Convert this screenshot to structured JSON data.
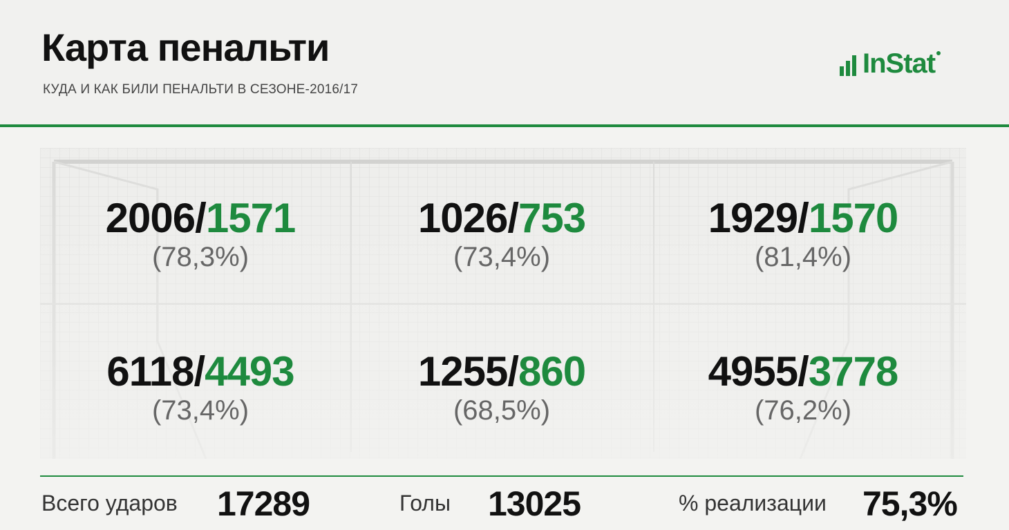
{
  "header": {
    "title": "Карта пенальти",
    "subtitle": "КУДА И КАК БИЛИ ПЕНАЛЬТИ В СЕЗОНЕ-2016/17",
    "logo_text": "InStat"
  },
  "colors": {
    "accent": "#1e8a3e",
    "text": "#111111",
    "muted": "#666666",
    "background": "#f3f3f1"
  },
  "zones": [
    {
      "shots": "2006",
      "goals": "1571",
      "pct": "(78,3%)"
    },
    {
      "shots": "1026",
      "goals": "753",
      "pct": "(73,4%)"
    },
    {
      "shots": "1929",
      "goals": "1570",
      "pct": "(81,4%)"
    },
    {
      "shots": "6118",
      "goals": "4493",
      "pct": "(73,4%)"
    },
    {
      "shots": "1255",
      "goals": "860",
      "pct": "(68,5%)"
    },
    {
      "shots": "4955",
      "goals": "3778",
      "pct": "(76,2%)"
    }
  ],
  "footer": {
    "total_label": "Всего ударов",
    "total_value": "17289",
    "goals_label": "Голы",
    "goals_value": "13025",
    "rate_label": "% реализации",
    "rate_value": "75,3%"
  }
}
